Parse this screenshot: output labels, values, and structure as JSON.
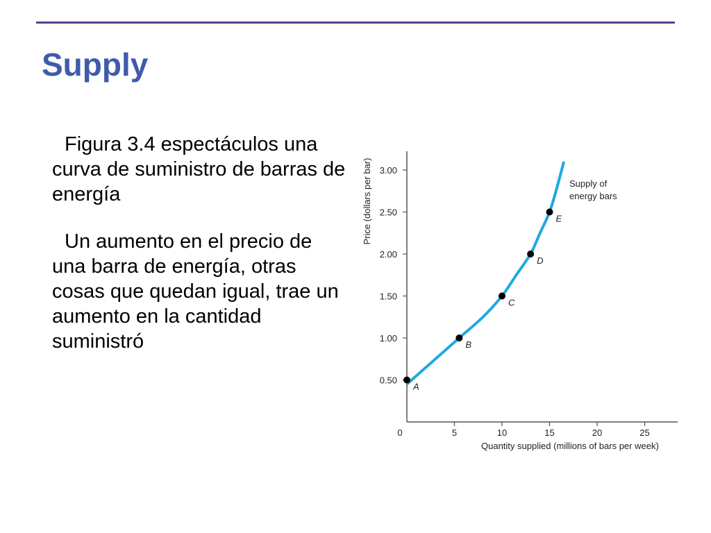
{
  "slide": {
    "title": "Supply",
    "paragraphs": [
      "Figura 3.4 espectáculos una curva de suministro de barras de energía",
      "Un aumento en el precio de una barra de energía, otras cosas que quedan igual, trae un aumento en la cantidad suministró"
    ]
  },
  "colors": {
    "title": "#3f5bab",
    "rule": "#5b3f8f",
    "curve": "#1fa9e1",
    "points": "#000000"
  },
  "chart_data": {
    "type": "line",
    "xlabel": "Quantity supplied (millions of bars per week)",
    "ylabel": "Price (dollars per bar)",
    "xlim": [
      0,
      28
    ],
    "ylim": [
      0,
      3.1
    ],
    "x_ticks": [
      0,
      5,
      10,
      15,
      20,
      25
    ],
    "y_ticks": [
      0.5,
      1.0,
      1.5,
      2.0,
      2.5,
      3.0
    ],
    "x_tick_labels": [
      "0",
      "5",
      "10",
      "15",
      "20",
      "25"
    ],
    "y_tick_labels": [
      "0.50",
      "1.00",
      "1.50",
      "2.00",
      "2.50",
      "3.00"
    ],
    "grid": false,
    "series": [
      {
        "name": "Supply of energy bars",
        "x": [
          0,
          0.5,
          3,
          5.5,
          8,
          10,
          11.5,
          13,
          14,
          15,
          15.8,
          16.5
        ],
        "y": [
          0.45,
          0.5,
          0.75,
          1.0,
          1.25,
          1.5,
          1.75,
          2.0,
          2.25,
          2.5,
          2.8,
          3.1
        ]
      }
    ],
    "points": [
      {
        "label": "A",
        "x": 0,
        "y": 0.5
      },
      {
        "label": "B",
        "x": 5.5,
        "y": 1.0
      },
      {
        "label": "C",
        "x": 10,
        "y": 1.5
      },
      {
        "label": "D",
        "x": 13,
        "y": 2.0
      },
      {
        "label": "E",
        "x": 15,
        "y": 2.5
      }
    ],
    "annotations": [
      "Supply of",
      "energy bars"
    ]
  }
}
